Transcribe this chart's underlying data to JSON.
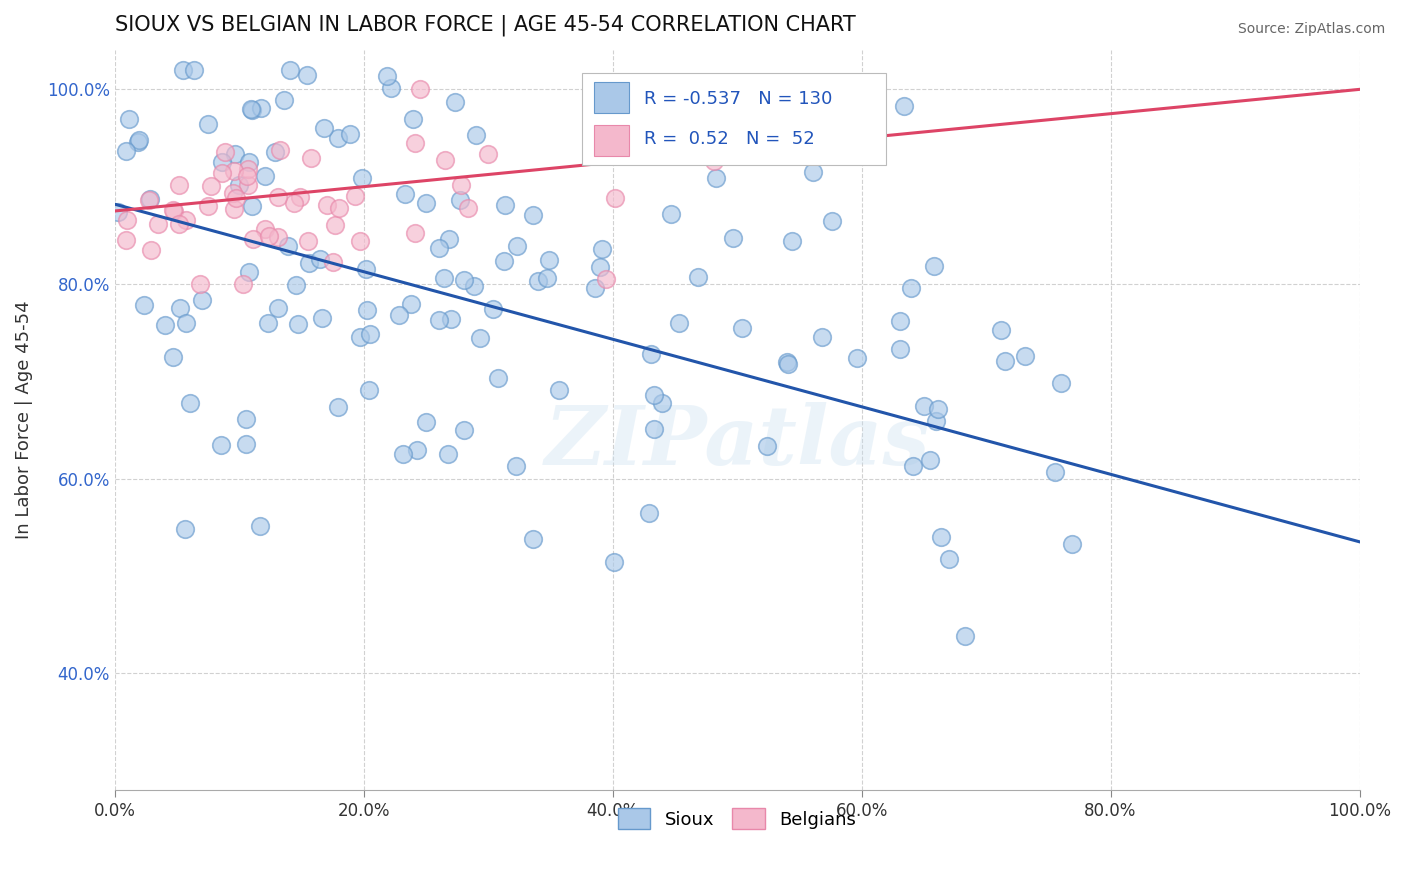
{
  "title": "SIOUX VS BELGIAN IN LABOR FORCE | AGE 45-54 CORRELATION CHART",
  "source_text": "Source: ZipAtlas.com",
  "ylabel": "In Labor Force | Age 45-54",
  "xlim": [
    0.0,
    1.0
  ],
  "ylim": [
    0.28,
    1.04
  ],
  "xticks": [
    0.0,
    0.2,
    0.4,
    0.6,
    0.8,
    1.0
  ],
  "xticklabels": [
    "0.0%",
    "20.0%",
    "40.0%",
    "60.0%",
    "80.0%",
    "100.0%"
  ],
  "yticks": [
    0.4,
    0.6,
    0.8,
    1.0
  ],
  "yticklabels": [
    "40.0%",
    "60.0%",
    "80.0%",
    "100.0%"
  ],
  "sioux_color": "#aac8e8",
  "belgian_color": "#f4b8cc",
  "sioux_edge_color": "#6699cc",
  "belgian_edge_color": "#e888aa",
  "trend_blue": "#2255aa",
  "trend_pink": "#dd4466",
  "R_sioux": -0.537,
  "N_sioux": 130,
  "R_belgian": 0.52,
  "N_belgian": 52,
  "watermark": "ZIPatlas",
  "background_color": "#ffffff",
  "grid_color": "#cccccc",
  "sioux_seed": 17,
  "belgian_seed": 99,
  "trend_blue_start_y": 0.882,
  "trend_blue_end_y": 0.535,
  "trend_pink_start_y": 0.875,
  "trend_pink_end_y": 1.0
}
